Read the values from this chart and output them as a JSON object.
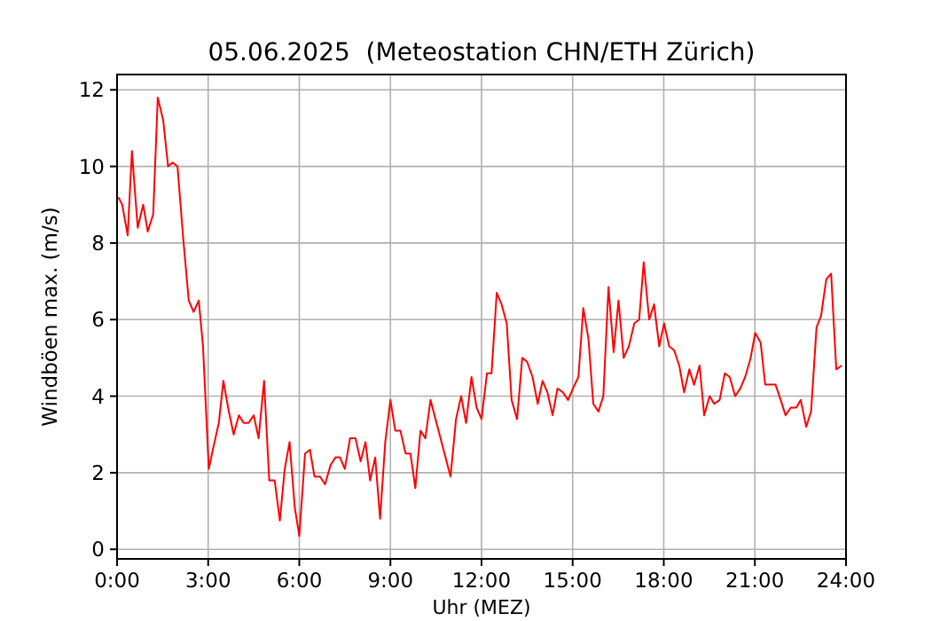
{
  "chart_data": {
    "type": "line",
    "title": "05.06.2025  (Meteostation CHN/ETH Zürich)",
    "xlabel": "Uhr (MEZ)",
    "ylabel": "Windböen max. (m/s)",
    "x": [
      0.04,
      0.17,
      0.35,
      0.49,
      0.68,
      0.86,
      1.01,
      1.19,
      1.34,
      1.52,
      1.68,
      1.83,
      1.99,
      2.18,
      2.36,
      2.52,
      2.69,
      2.83,
      3.02,
      3.18,
      3.35,
      3.5,
      3.68,
      3.84,
      4.01,
      4.17,
      4.33,
      4.5,
      4.66,
      4.84,
      5.01,
      5.19,
      5.36,
      5.52,
      5.68,
      5.85,
      6.0,
      6.19,
      6.35,
      6.5,
      6.68,
      6.85,
      7.03,
      7.19,
      7.34,
      7.5,
      7.67,
      7.85,
      8.02,
      8.18,
      8.33,
      8.5,
      8.66,
      8.83,
      9.0,
      9.16,
      9.33,
      9.5,
      9.66,
      9.82,
      9.99,
      10.15,
      10.32,
      10.65,
      10.98,
      11.16,
      11.33,
      11.49,
      11.67,
      11.84,
      12.0,
      12.18,
      12.33,
      12.5,
      12.66,
      12.83,
      12.99,
      13.17,
      13.34,
      13.5,
      13.68,
      13.85,
      14.01,
      14.17,
      14.34,
      14.5,
      14.68,
      14.85,
      15.01,
      15.19,
      15.35,
      15.52,
      15.68,
      15.85,
      16.01,
      16.18,
      16.35,
      16.51,
      16.68,
      16.85,
      17.03,
      17.19,
      17.34,
      17.52,
      17.68,
      17.85,
      18.01,
      18.18,
      18.34,
      18.51,
      18.67,
      18.84,
      19.0,
      19.18,
      19.33,
      19.51,
      19.66,
      19.84,
      20.01,
      20.17,
      20.35,
      20.52,
      20.68,
      20.86,
      21.01,
      21.19,
      21.34,
      21.68,
      21.85,
      22.01,
      22.18,
      22.36,
      22.51,
      22.69,
      22.85,
      23.03,
      23.18,
      23.35,
      23.51,
      23.68,
      23.86
    ],
    "series": [
      {
        "color": "#ff0000",
        "values": [
          9.2,
          9.0,
          8.2,
          10.4,
          8.4,
          9.0,
          8.3,
          8.75,
          11.8,
          11.2,
          10.0,
          10.1,
          10.0,
          8.1,
          6.5,
          6.2,
          6.5,
          5.3,
          2.1,
          2.7,
          3.3,
          4.4,
          3.6,
          3.0,
          3.5,
          3.3,
          3.3,
          3.5,
          2.9,
          4.4,
          1.8,
          1.8,
          0.75,
          2.1,
          2.8,
          1.1,
          0.35,
          2.5,
          2.6,
          1.9,
          1.9,
          1.7,
          2.2,
          2.4,
          2.4,
          2.1,
          2.9,
          2.9,
          2.3,
          2.8,
          1.8,
          2.4,
          0.8,
          2.8,
          3.9,
          3.1,
          3.1,
          2.5,
          2.5,
          1.6,
          3.1,
          2.9,
          3.9,
          2.9,
          1.9,
          3.4,
          4.0,
          3.3,
          4.5,
          3.7,
          3.4,
          4.6,
          4.6,
          6.7,
          6.4,
          5.9,
          3.9,
          3.4,
          5.0,
          4.9,
          4.5,
          3.8,
          4.4,
          4.1,
          3.5,
          4.2,
          4.1,
          3.9,
          4.2,
          4.5,
          6.3,
          5.5,
          3.8,
          3.6,
          4.0,
          6.85,
          5.15,
          6.5,
          5.0,
          5.3,
          5.9,
          6.0,
          7.5,
          6.0,
          6.4,
          5.3,
          5.9,
          5.3,
          5.2,
          4.8,
          4.1,
          4.7,
          4.3,
          4.8,
          3.5,
          4.0,
          3.8,
          3.9,
          4.6,
          4.5,
          4.0,
          4.2,
          4.5,
          5.0,
          5.65,
          5.4,
          4.3,
          4.3,
          3.9,
          3.5,
          3.7,
          3.7,
          3.9,
          3.2,
          3.6,
          5.8,
          6.1,
          7.05,
          7.2,
          4.7,
          4.8
        ]
      }
    ],
    "xlim": [
      0,
      24
    ],
    "ylim": [
      -0.25,
      12.4
    ],
    "xticks": [
      {
        "value": 0,
        "label": "0:00"
      },
      {
        "value": 3,
        "label": "3:00"
      },
      {
        "value": 6,
        "label": "6:00"
      },
      {
        "value": 9,
        "label": "9:00"
      },
      {
        "value": 12,
        "label": "12:00"
      },
      {
        "value": 15,
        "label": "15:00"
      },
      {
        "value": 18,
        "label": "18:00"
      },
      {
        "value": 21,
        "label": "21:00"
      },
      {
        "value": 24,
        "label": "24:00"
      }
    ],
    "yticks": [
      0,
      2,
      4,
      6,
      8,
      10,
      12
    ],
    "grid": true,
    "marker": "none",
    "line_style": "solid"
  }
}
